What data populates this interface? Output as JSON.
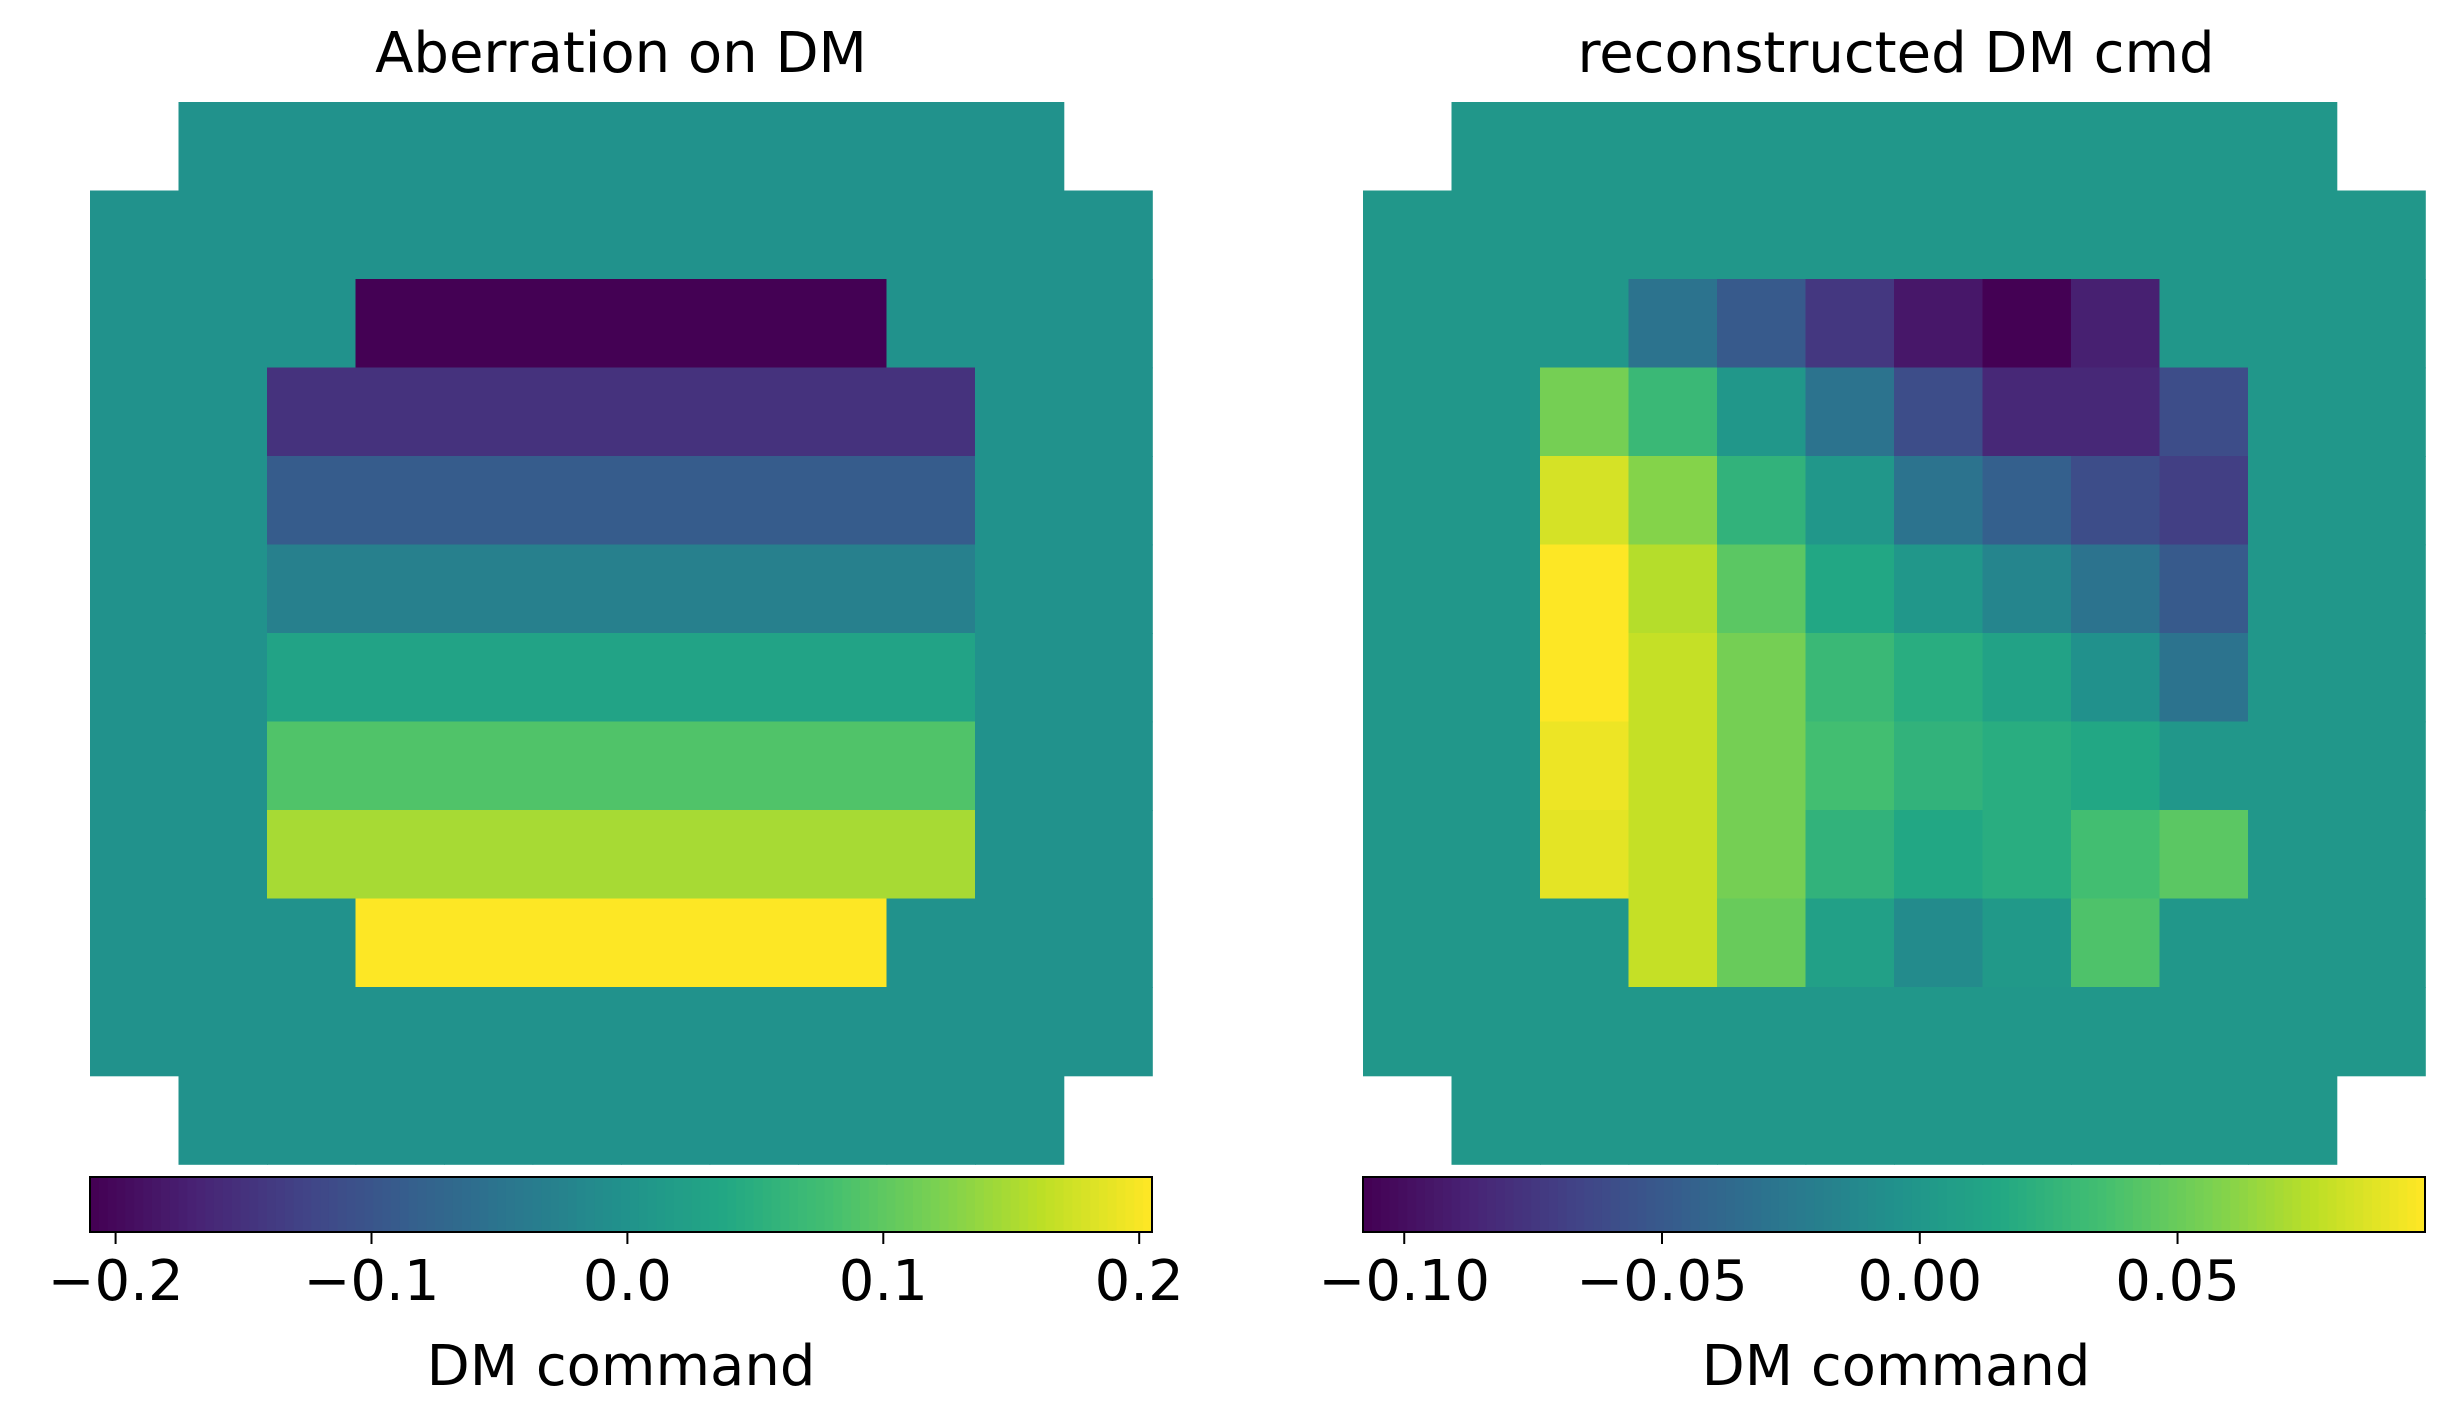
{
  "chart_data": [
    {
      "type": "heatmap",
      "title": "Aberration on DM",
      "grid_size": 12,
      "mask": {
        "corner_cut": [
          [
            0,
            0
          ],
          [
            0,
            11
          ],
          [
            11,
            0
          ],
          [
            11,
            11
          ]
        ],
        "note_free": true
      },
      "values": [
        [
          null,
          0,
          0,
          0,
          0,
          0,
          0,
          0,
          0,
          0,
          0,
          null
        ],
        [
          0,
          0,
          0,
          0,
          0,
          0,
          0,
          0,
          0,
          0,
          0,
          0
        ],
        [
          0,
          0,
          0,
          -0.21,
          -0.21,
          -0.21,
          -0.21,
          -0.21,
          -0.21,
          0,
          0,
          0
        ],
        [
          0,
          0,
          -0.15,
          -0.15,
          -0.15,
          -0.15,
          -0.15,
          -0.15,
          -0.15,
          -0.15,
          0,
          0
        ],
        [
          0,
          0,
          -0.09,
          -0.09,
          -0.09,
          -0.09,
          -0.09,
          -0.09,
          -0.09,
          -0.09,
          0,
          0
        ],
        [
          0,
          0,
          -0.03,
          -0.03,
          -0.03,
          -0.03,
          -0.03,
          -0.03,
          -0.03,
          -0.03,
          0,
          0
        ],
        [
          0,
          0,
          0.03,
          0.03,
          0.03,
          0.03,
          0.03,
          0.03,
          0.03,
          0.03,
          0,
          0
        ],
        [
          0,
          0,
          0.09,
          0.09,
          0.09,
          0.09,
          0.09,
          0.09,
          0.09,
          0.09,
          0,
          0
        ],
        [
          0,
          0,
          0.15,
          0.15,
          0.15,
          0.15,
          0.15,
          0.15,
          0.15,
          0.15,
          0,
          0
        ],
        [
          0,
          0,
          0,
          0.21,
          0.21,
          0.21,
          0.21,
          0.21,
          0.21,
          0,
          0,
          0
        ],
        [
          0,
          0,
          0,
          0,
          0,
          0,
          0,
          0,
          0,
          0,
          0,
          0
        ],
        [
          null,
          0,
          0,
          0,
          0,
          0,
          0,
          0,
          0,
          0,
          0,
          null
        ]
      ],
      "vmin": -0.21,
      "vmax": 0.205,
      "colormap": "viridis",
      "colorbar": {
        "label": "DM command",
        "ticks": [
          -0.2,
          -0.1,
          0.0,
          0.1,
          0.2
        ],
        "tick_labels": [
          "−0.2",
          "−0.1",
          "0.0",
          "0.1",
          "0.2"
        ]
      }
    },
    {
      "type": "heatmap",
      "title": "reconstructed DM cmd",
      "grid_size": 12,
      "values": [
        [
          null,
          0,
          0,
          0,
          0,
          0,
          0,
          0,
          0,
          0,
          0,
          null
        ],
        [
          0,
          0,
          0,
          0,
          0,
          0,
          0,
          0,
          0,
          0,
          0,
          0
        ],
        [
          0,
          0,
          0,
          -0.03,
          -0.05,
          -0.075,
          -0.095,
          -0.108,
          -0.09,
          0,
          0,
          0
        ],
        [
          0,
          0,
          0.055,
          0.03,
          0,
          -0.03,
          -0.06,
          -0.085,
          -0.085,
          -0.06,
          0,
          0
        ],
        [
          0,
          0,
          0.085,
          0.06,
          0.025,
          0,
          -0.03,
          -0.045,
          -0.06,
          -0.07,
          0,
          0
        ],
        [
          0,
          0,
          0.098,
          0.075,
          0.045,
          0.015,
          0,
          -0.015,
          -0.03,
          -0.05,
          0,
          0
        ],
        [
          0,
          0,
          0.098,
          0.08,
          0.055,
          0.03,
          0.02,
          0.01,
          -0.005,
          -0.03,
          0,
          0
        ],
        [
          0,
          0,
          0.093,
          0.08,
          0.055,
          0.035,
          0.025,
          0.02,
          0.015,
          0,
          0,
          0
        ],
        [
          0,
          0,
          0.09,
          0.08,
          0.055,
          0.025,
          0.015,
          0.02,
          0.035,
          0.045,
          0,
          0
        ],
        [
          0,
          0,
          0,
          0.08,
          0.05,
          0.008,
          -0.01,
          0.002,
          0.04,
          0,
          0,
          0
        ],
        [
          0,
          0,
          0,
          0,
          0,
          0,
          0,
          0,
          0,
          0,
          0,
          0
        ],
        [
          null,
          0,
          0,
          0,
          0,
          0,
          0,
          0,
          0,
          0,
          0,
          null
        ]
      ],
      "vmin": -0.108,
      "vmax": 0.098,
      "colormap": "viridis",
      "colorbar": {
        "label": "DM command",
        "ticks": [
          -0.1,
          -0.05,
          0.0,
          0.05
        ],
        "tick_labels": [
          "−0.10",
          "−0.05",
          "0.00",
          "0.05"
        ]
      }
    }
  ]
}
